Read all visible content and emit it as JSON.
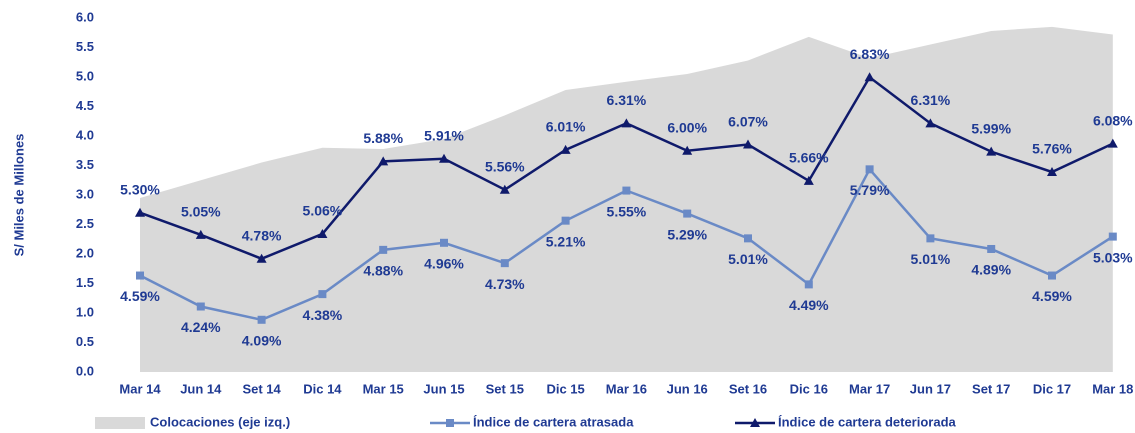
{
  "chart_data": {
    "type": "area-line",
    "y_label": "S/ Miles de Millones",
    "categories": [
      "Mar 14",
      "Jun 14",
      "Set 14",
      "Dic 14",
      "Mar 15",
      "Jun 15",
      "Set 15",
      "Dic 15",
      "Mar 16",
      "Jun 16",
      "Set 16",
      "Dic 16",
      "Mar 17",
      "Jun 17",
      "Set 17",
      "Dic 17",
      "Mar 18"
    ],
    "ylim": [
      0,
      6
    ],
    "yticks": [
      {
        "value": 0,
        "label": "0.0"
      },
      {
        "value": 0.5,
        "label": "0.5"
      },
      {
        "value": 1,
        "label": "1.0"
      },
      {
        "value": 1.5,
        "label": "1.5"
      },
      {
        "value": 2,
        "label": "2.0"
      },
      {
        "value": 2.5,
        "label": "2.5"
      },
      {
        "value": 3,
        "label": "3.0"
      },
      {
        "value": 3.5,
        "label": "3.5"
      },
      {
        "value": 4,
        "label": "4.0"
      },
      {
        "value": 4.5,
        "label": "4.5"
      },
      {
        "value": 5,
        "label": "5.0"
      },
      {
        "value": 5.5,
        "label": "5.5"
      },
      {
        "value": 6,
        "label": "6.0"
      }
    ],
    "y2lim": [
      3.5,
      7.5
    ],
    "series": [
      {
        "name": "Colocaciones (eje izq.)",
        "kind": "area",
        "color": "#d9d9d9",
        "values": [
          2.95,
          3.25,
          3.55,
          3.8,
          3.78,
          3.95,
          4.35,
          4.78,
          4.92,
          5.05,
          5.28,
          5.68,
          5.32,
          5.55,
          5.78,
          5.85,
          5.72
        ]
      },
      {
        "name": "Índice de cartera atrasada",
        "kind": "line",
        "axis": "y2",
        "color": "#6a8ac6",
        "marker": "square",
        "label_side": "below",
        "values": [
          4.59,
          4.24,
          4.09,
          4.38,
          4.88,
          4.96,
          4.73,
          5.21,
          5.55,
          5.29,
          5.01,
          4.49,
          5.79,
          5.01,
          4.89,
          4.59,
          5.03
        ],
        "value_labels": [
          "4.59%",
          "4.24%",
          "4.09%",
          "4.38%",
          "4.88%",
          "4.96%",
          "4.73%",
          "5.21%",
          "5.55%",
          "5.29%",
          "5.01%",
          "4.49%",
          "5.79%",
          "5.01%",
          "4.89%",
          "4.59%",
          "5.03%"
        ]
      },
      {
        "name": "Índice de cartera deteriorada",
        "kind": "line",
        "axis": "y2",
        "color": "#0f1a6b",
        "marker": "triangle",
        "label_side": "above",
        "values": [
          5.3,
          5.05,
          4.78,
          5.06,
          5.88,
          5.91,
          5.56,
          6.01,
          6.31,
          6.0,
          6.07,
          5.66,
          6.83,
          6.31,
          5.99,
          5.76,
          6.08
        ],
        "value_labels": [
          "5.30%",
          "5.05%",
          "4.78%",
          "5.06%",
          "5.88%",
          "5.91%",
          "5.56%",
          "6.01%",
          "6.31%",
          "6.00%",
          "6.07%",
          "5.66%",
          "6.83%",
          "6.31%",
          "5.99%",
          "5.76%",
          "6.08%"
        ]
      }
    ]
  }
}
